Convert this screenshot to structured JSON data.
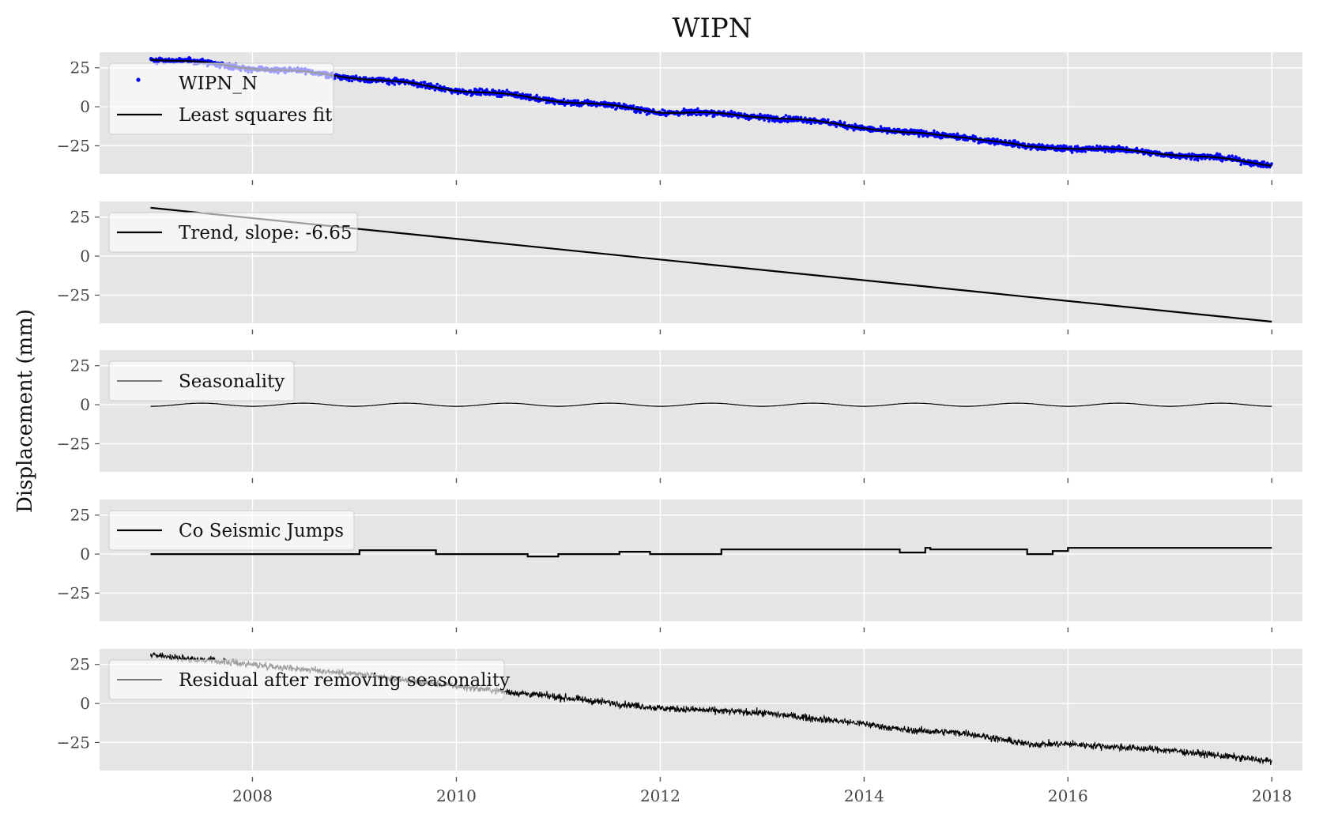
{
  "figure": {
    "title": "WIPN",
    "ylabel": "Displacement (mm)",
    "colors": {
      "background": "#ffffff",
      "panel": "#e5e5e5",
      "grid": "#ffffff",
      "data_points": "#0000ff",
      "fit_line": "#000000",
      "faded_overlay": "#ffffff"
    }
  },
  "chart_data": {
    "type": "line",
    "xlim": [
      2006.5,
      2018.3
    ],
    "ylim": [
      -43,
      35
    ],
    "x_ticks": [
      2008,
      2010,
      2012,
      2014,
      2016,
      2018
    ],
    "x_tick_labels": [
      "2008",
      "2010",
      "2012",
      "2014",
      "2016",
      "2018"
    ],
    "y_ticks": [
      25,
      0,
      -25
    ],
    "y_tick_labels": [
      "25",
      "0",
      "−25"
    ],
    "grid": true,
    "legend_location": "upper left",
    "panels": [
      {
        "legend": [
          {
            "label": "WIPN_N",
            "style": "points"
          },
          {
            "label": "Least squares fit",
            "style": "line"
          }
        ],
        "series": [
          {
            "name": "WIPN_N",
            "kind": "scatter",
            "x_range": [
              2007.0,
              2018.0
            ],
            "approx_trend": "31 → -37 mm"
          },
          {
            "name": "Least squares fit",
            "kind": "line",
            "x": [
              2007.0,
              2009.0,
              2010.0,
              2011.0,
              2012.0,
              2013.0,
              2014.0,
              2014.4,
              2015.0,
              2015.6,
              2016.0,
              2017.0,
              2018.0
            ],
            "y": [
              31,
              19,
              11,
              4,
              -3,
              -6,
              -13,
              -17,
              -19,
              -26,
              -26,
              -30,
              -37
            ]
          }
        ]
      },
      {
        "legend": [
          {
            "label": "Trend, slope: -6.65",
            "style": "line"
          }
        ],
        "series": [
          {
            "name": "Trend, slope: -6.65",
            "kind": "line",
            "x": [
              2007.0,
              2018.0
            ],
            "y": [
              31,
              -42
            ]
          }
        ]
      },
      {
        "legend": [
          {
            "label": "Seasonality",
            "style": "thin-line"
          }
        ],
        "series": [
          {
            "name": "Seasonality",
            "kind": "sine",
            "x_range": [
              2007.0,
              2018.0
            ],
            "amplitude": 1.0,
            "period_years": 1.0
          }
        ]
      },
      {
        "legend": [
          {
            "label": "Co Seismic Jumps",
            "style": "line"
          }
        ],
        "series": [
          {
            "name": "Co Seismic Jumps",
            "kind": "step",
            "x": [
              2007.0,
              2009.05,
              2009.8,
              2010.7,
              2011.0,
              2011.6,
              2011.9,
              2012.6,
              2014.35,
              2014.6,
              2014.65,
              2015.6,
              2015.85,
              2016.0,
              2018.0
            ],
            "y": [
              0,
              2.5,
              0,
              -1.5,
              0,
              1.5,
              0,
              3,
              1,
              4,
              3,
              0,
              2,
              4,
              4
            ]
          }
        ]
      },
      {
        "legend": [
          {
            "label": "Residual after removing seasonality",
            "style": "thin-line"
          }
        ],
        "series": [
          {
            "name": "Residual after removing seasonality",
            "kind": "noisy-line",
            "x_range": [
              2007.0,
              2018.0
            ],
            "approx_trend": "31 → -37 mm"
          }
        ]
      }
    ]
  }
}
